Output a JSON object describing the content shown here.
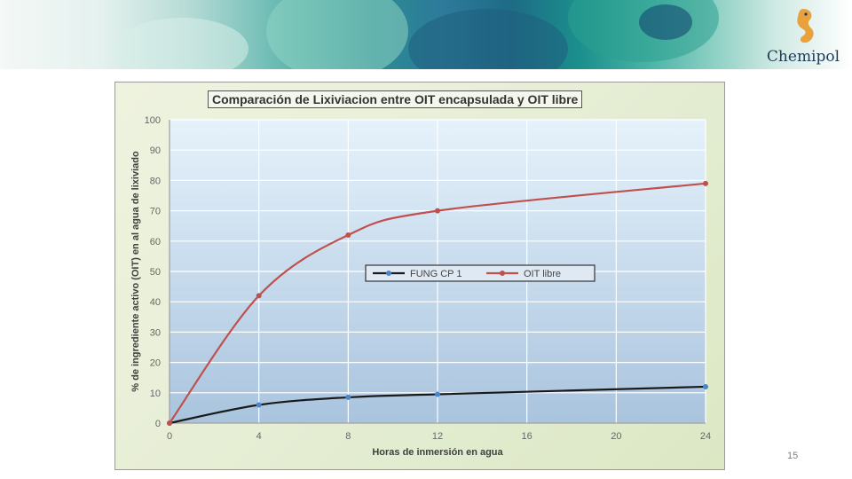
{
  "slide": {
    "brand": "Chemipol",
    "page_number": "15"
  },
  "colors": {
    "series1": "#1a1a1a",
    "series1_marker": "#4a86c8",
    "series2": "#c0504d"
  },
  "chart_data": {
    "type": "line",
    "title": "Comparación de Lixiviacion entre OIT encapsulada y OIT libre",
    "xlabel": "Horas de inmersión en agua",
    "ylabel": "% de ingrediente activo (OIT) en al agua de lixiviado",
    "xlim": [
      0,
      24
    ],
    "ylim": [
      0,
      100
    ],
    "x_ticks": [
      0,
      4,
      8,
      12,
      16,
      20,
      24
    ],
    "y_ticks": [
      0,
      10,
      20,
      30,
      40,
      50,
      60,
      70,
      80,
      90,
      100
    ],
    "grid": true,
    "legend_position": "center",
    "series": [
      {
        "name": "FUNG CP 1",
        "x": [
          0,
          4,
          8,
          12,
          24
        ],
        "values": [
          0,
          6,
          8.5,
          9.5,
          12
        ]
      },
      {
        "name": "OIT libre",
        "x": [
          0,
          4,
          8,
          12,
          24
        ],
        "values": [
          0,
          42,
          62,
          70,
          79
        ]
      }
    ]
  }
}
